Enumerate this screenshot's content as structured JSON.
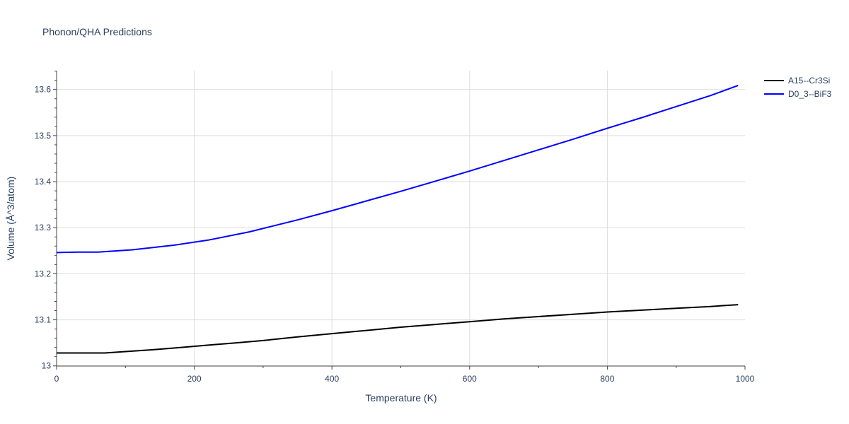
{
  "chart_data": {
    "type": "line",
    "title": "Phonon/QHA Predictions",
    "xlabel": "Temperature (K)",
    "ylabel": "Volume (Å^3/atom)",
    "xlim": [
      0,
      1000
    ],
    "ylim": [
      12.9996,
      13.641
    ],
    "x_ticks": [
      0,
      200,
      400,
      600,
      800,
      1000
    ],
    "x_tick_labels": [
      "0",
      "200",
      "400",
      "600",
      "800",
      "1000"
    ],
    "y_ticks": [
      13.0,
      13.1,
      13.2,
      13.3,
      13.4,
      13.5,
      13.6
    ],
    "y_tick_labels": [
      "13",
      "13.1",
      "13.2",
      "13.3",
      "13.4",
      "13.5",
      "13.6"
    ],
    "grid": true,
    "legend_position": "top-right",
    "series": [
      {
        "name": "A15--Cr3Si",
        "color": "#000000",
        "x": [
          0,
          20,
          40,
          70,
          100,
          140,
          180,
          220,
          260,
          300,
          350,
          400,
          450,
          500,
          550,
          600,
          650,
          700,
          750,
          800,
          850,
          900,
          950,
          990
        ],
        "y": [
          13.028,
          13.028,
          13.028,
          13.028,
          13.031,
          13.035,
          13.04,
          13.045,
          13.05,
          13.055,
          13.063,
          13.07,
          13.077,
          13.084,
          13.09,
          13.096,
          13.102,
          13.107,
          13.112,
          13.117,
          13.121,
          13.125,
          13.129,
          13.133
        ]
      },
      {
        "name": "D0_3--BiF3",
        "color": "#0000ff",
        "x": [
          0,
          30,
          60,
          110,
          170,
          220,
          280,
          350,
          400,
          450,
          500,
          550,
          600,
          650,
          700,
          750,
          800,
          850,
          900,
          950,
          990
        ],
        "y": [
          13.246,
          13.247,
          13.247,
          13.252,
          13.262,
          13.273,
          13.291,
          13.317,
          13.337,
          13.358,
          13.379,
          13.401,
          13.423,
          13.446,
          13.469,
          13.492,
          13.516,
          13.539,
          13.563,
          13.587,
          13.609
        ]
      }
    ]
  }
}
